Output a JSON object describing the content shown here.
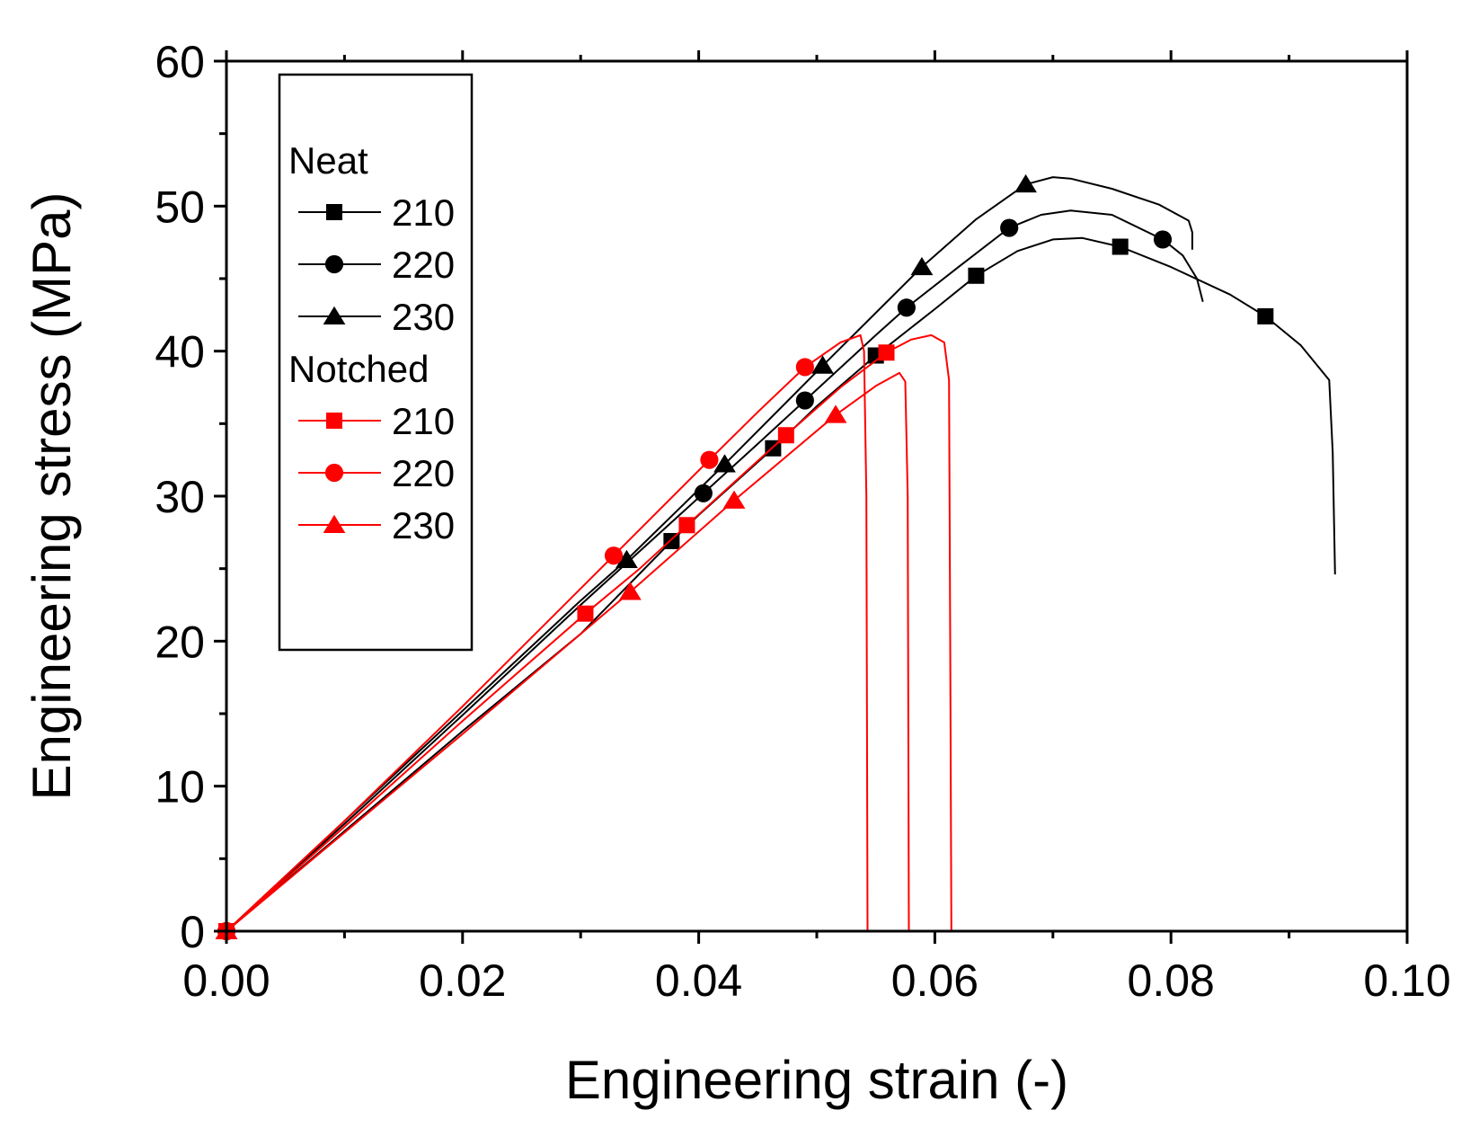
{
  "chart_data": {
    "type": "line",
    "title": "",
    "xlabel": "Engineering strain (-)",
    "ylabel": "Engineering stress (MPa)",
    "xlim": [
      0,
      0.1
    ],
    "ylim": [
      0,
      60
    ],
    "xticks": [
      0.0,
      0.02,
      0.04,
      0.06,
      0.08,
      0.1
    ],
    "xtick_labels": [
      "0.00",
      "0.02",
      "0.04",
      "0.06",
      "0.08",
      "0.10"
    ],
    "yticks": [
      0,
      10,
      20,
      30,
      40,
      50,
      60
    ],
    "ytick_labels": [
      "0",
      "10",
      "20",
      "30",
      "40",
      "50",
      "60"
    ],
    "grid": false,
    "legend": {
      "position": "top-left",
      "groups": [
        {
          "title": "Neat",
          "entries": [
            "210",
            "220",
            "230"
          ]
        },
        {
          "title": "Notched",
          "entries": [
            "210",
            "220",
            "230"
          ]
        }
      ]
    },
    "series": [
      {
        "name": "Neat 210",
        "group": "Neat",
        "label": "210",
        "color": "#000000",
        "marker": "square",
        "curve": [
          [
            0,
            0
          ],
          [
            0.01,
            6.9
          ],
          [
            0.02,
            13.8
          ],
          [
            0.03,
            20.5
          ],
          [
            0.0377,
            26.9
          ],
          [
            0.04,
            28.7
          ],
          [
            0.0463,
            33.3
          ],
          [
            0.05,
            36.2
          ],
          [
            0.055,
            39.7
          ],
          [
            0.06,
            42.9
          ],
          [
            0.0635,
            45.2
          ],
          [
            0.067,
            46.9
          ],
          [
            0.07,
            47.7
          ],
          [
            0.0725,
            47.8
          ],
          [
            0.0757,
            47.2
          ],
          [
            0.08,
            45.8
          ],
          [
            0.085,
            43.9
          ],
          [
            0.088,
            42.4
          ],
          [
            0.091,
            40.4
          ],
          [
            0.0934,
            38.0
          ],
          [
            0.0937,
            33.0
          ],
          [
            0.0939,
            24.6
          ]
        ],
        "markers": [
          [
            0,
            0
          ],
          [
            0.0377,
            26.9
          ],
          [
            0.0463,
            33.3
          ],
          [
            0.055,
            39.7
          ],
          [
            0.0635,
            45.2
          ],
          [
            0.0757,
            47.2
          ],
          [
            0.088,
            42.4
          ]
        ]
      },
      {
        "name": "Neat 220",
        "group": "Neat",
        "label": "220",
        "color": "#000000",
        "marker": "circle",
        "curve": [
          [
            0,
            0
          ],
          [
            0.01,
            7.4
          ],
          [
            0.02,
            14.9
          ],
          [
            0.03,
            22.5
          ],
          [
            0.0404,
            30.2
          ],
          [
            0.045,
            33.6
          ],
          [
            0.049,
            36.6
          ],
          [
            0.055,
            41.1
          ],
          [
            0.0576,
            43.0
          ],
          [
            0.062,
            45.8
          ],
          [
            0.0663,
            48.5
          ],
          [
            0.069,
            49.4
          ],
          [
            0.0715,
            49.7
          ],
          [
            0.075,
            49.4
          ],
          [
            0.0793,
            47.7
          ],
          [
            0.081,
            46.6
          ],
          [
            0.0822,
            45.0
          ],
          [
            0.0827,
            43.4
          ]
        ],
        "markers": [
          [
            0,
            0
          ],
          [
            0.0404,
            30.2
          ],
          [
            0.049,
            36.6
          ],
          [
            0.0576,
            43.0
          ],
          [
            0.0663,
            48.5
          ],
          [
            0.0793,
            47.7
          ]
        ]
      },
      {
        "name": "Neat 230",
        "group": "Neat",
        "label": "230",
        "color": "#000000",
        "marker": "triangle",
        "curve": [
          [
            0,
            0
          ],
          [
            0.01,
            7.6
          ],
          [
            0.02,
            15.2
          ],
          [
            0.03,
            22.8
          ],
          [
            0.0339,
            25.6
          ],
          [
            0.0422,
            32.2
          ],
          [
            0.0505,
            39.0
          ],
          [
            0.0589,
            45.8
          ],
          [
            0.0635,
            49.1
          ],
          [
            0.0677,
            51.5
          ],
          [
            0.07,
            52.0
          ],
          [
            0.0715,
            51.9
          ],
          [
            0.075,
            51.2
          ],
          [
            0.079,
            50.1
          ],
          [
            0.0815,
            49.0
          ],
          [
            0.0818,
            48.2
          ],
          [
            0.0818,
            47.0
          ]
        ],
        "markers": [
          [
            0,
            0
          ],
          [
            0.0339,
            25.6
          ],
          [
            0.0422,
            32.2
          ],
          [
            0.0505,
            39.0
          ],
          [
            0.0589,
            45.8
          ],
          [
            0.0677,
            51.5
          ]
        ]
      },
      {
        "name": "Notched 210",
        "group": "Notched",
        "label": "210",
        "color": "#ff0000",
        "marker": "square",
        "curve": [
          [
            0,
            0
          ],
          [
            0.01,
            7.2
          ],
          [
            0.02,
            14.5
          ],
          [
            0.0304,
            21.9
          ],
          [
            0.035,
            25.0
          ],
          [
            0.039,
            28.0
          ],
          [
            0.0474,
            34.2
          ],
          [
            0.052,
            37.5
          ],
          [
            0.0559,
            39.9
          ],
          [
            0.058,
            40.8
          ],
          [
            0.0597,
            41.1
          ],
          [
            0.0608,
            40.6
          ],
          [
            0.0612,
            38.0
          ],
          [
            0.0613,
            20.0
          ],
          [
            0.0614,
            0
          ]
        ],
        "markers": [
          [
            0,
            0
          ],
          [
            0.0304,
            21.9
          ],
          [
            0.039,
            28.0
          ],
          [
            0.0474,
            34.2
          ],
          [
            0.0559,
            39.9
          ]
        ]
      },
      {
        "name": "Notched 220",
        "group": "Notched",
        "label": "220",
        "color": "#ff0000",
        "marker": "circle",
        "curve": [
          [
            0,
            0
          ],
          [
            0.01,
            7.6
          ],
          [
            0.02,
            15.5
          ],
          [
            0.0328,
            25.9
          ],
          [
            0.0409,
            32.5
          ],
          [
            0.045,
            35.8
          ],
          [
            0.049,
            38.9
          ],
          [
            0.052,
            40.6
          ],
          [
            0.0537,
            41.1
          ],
          [
            0.054,
            40.0
          ],
          [
            0.0542,
            30.0
          ],
          [
            0.0543,
            0
          ]
        ],
        "markers": [
          [
            0,
            0
          ],
          [
            0.0328,
            25.9
          ],
          [
            0.0409,
            32.5
          ],
          [
            0.049,
            38.9
          ]
        ]
      },
      {
        "name": "Notched 230",
        "group": "Notched",
        "label": "230",
        "color": "#ff0000",
        "marker": "triangle",
        "curve": [
          [
            0,
            0
          ],
          [
            0.01,
            6.8
          ],
          [
            0.02,
            13.6
          ],
          [
            0.0342,
            23.4
          ],
          [
            0.043,
            29.7
          ],
          [
            0.0516,
            35.6
          ],
          [
            0.055,
            37.6
          ],
          [
            0.057,
            38.5
          ],
          [
            0.0575,
            37.9
          ],
          [
            0.0577,
            30.0
          ],
          [
            0.0578,
            0
          ]
        ],
        "markers": [
          [
            0,
            0
          ],
          [
            0.0342,
            23.4
          ],
          [
            0.043,
            29.7
          ],
          [
            0.0516,
            35.6
          ]
        ]
      }
    ]
  }
}
